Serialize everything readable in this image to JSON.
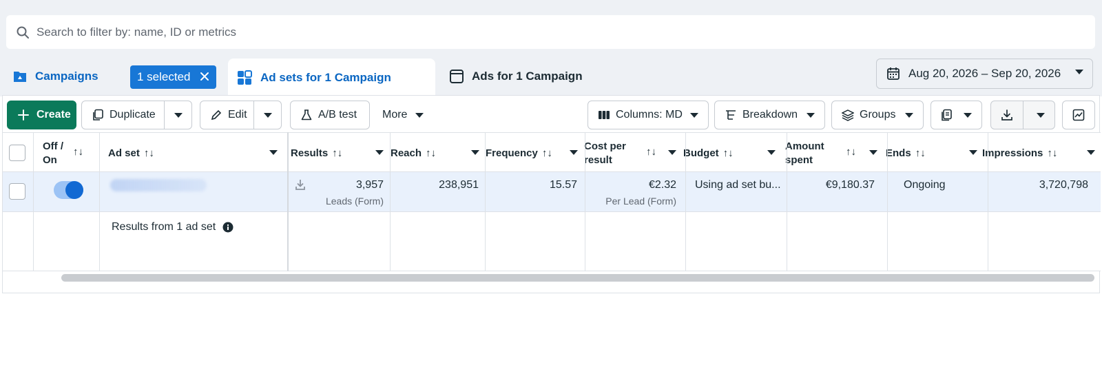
{
  "search": {
    "placeholder": "Search to filter by: name, ID or metrics"
  },
  "tabs": {
    "campaigns": "Campaigns",
    "selected_badge": "1 selected",
    "adsets": "Ad sets for 1 Campaign",
    "ads": "Ads for 1 Campaign"
  },
  "date_range": "Aug 20, 2026 – Sep 20, 2026",
  "toolbar": {
    "create": "Create",
    "duplicate": "Duplicate",
    "edit": "Edit",
    "ab_test": "A/B test",
    "more": "More",
    "columns": "Columns: MD",
    "breakdown": "Breakdown",
    "groups": "Groups"
  },
  "table": {
    "headers": {
      "offon_1": "Off /",
      "offon_2": "On",
      "adset": "Ad set",
      "results": "Results",
      "reach": "Reach",
      "frequency": "Frequency",
      "cost_1": "Cost per",
      "cost_2": "result",
      "budget": "Budget",
      "amount_1": "Amount",
      "amount_2": "spent",
      "ends": "Ends",
      "impressions": "Impressions"
    },
    "row": {
      "toggle_on": true,
      "results": "3,957",
      "results_sub": "Leads (Form)",
      "reach": "238,951",
      "frequency": "15.57",
      "cost": "€2.32",
      "cost_sub": "Per Lead (Form)",
      "budget": "Using ad set bu...",
      "amount": "€9,180.37",
      "ends": "Ongoing",
      "impressions": "3,720,798"
    },
    "summary": {
      "label": "Results from 1 ad set"
    }
  },
  "colors": {
    "accent": "#0a66c2",
    "create": "#0b7a5a",
    "selected_row": "#e9f1fc"
  }
}
